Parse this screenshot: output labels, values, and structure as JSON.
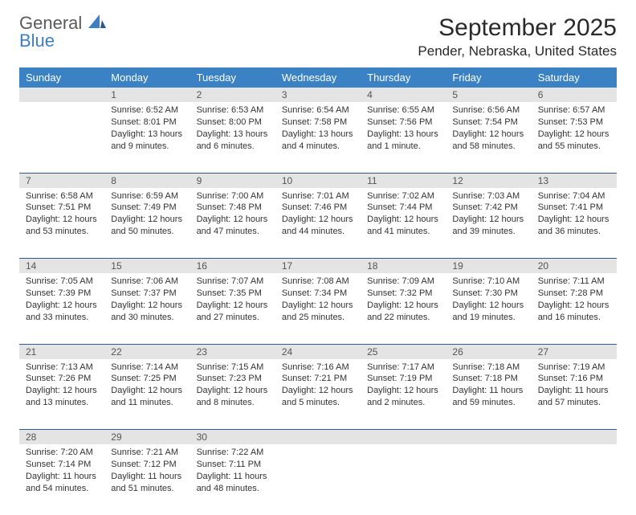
{
  "brand": {
    "line1": "General",
    "line2": "Blue"
  },
  "title": "September 2025",
  "location": "Pender, Nebraska, United States",
  "colors": {
    "header_bg": "#3b82c4",
    "header_text": "#ffffff",
    "daynum_bg": "#e4e4e4",
    "cell_border": "#2f5b8a",
    "body_text": "#333333",
    "brand_gray": "#5a5a5a",
    "brand_blue": "#3b7fc4"
  },
  "dayNames": [
    "Sunday",
    "Monday",
    "Tuesday",
    "Wednesday",
    "Thursday",
    "Friday",
    "Saturday"
  ],
  "weeks": [
    [
      null,
      {
        "n": "1",
        "sr": "6:52 AM",
        "ss": "8:01 PM",
        "dl": "13 hours and 9 minutes."
      },
      {
        "n": "2",
        "sr": "6:53 AM",
        "ss": "8:00 PM",
        "dl": "13 hours and 6 minutes."
      },
      {
        "n": "3",
        "sr": "6:54 AM",
        "ss": "7:58 PM",
        "dl": "13 hours and 4 minutes."
      },
      {
        "n": "4",
        "sr": "6:55 AM",
        "ss": "7:56 PM",
        "dl": "13 hours and 1 minute."
      },
      {
        "n": "5",
        "sr": "6:56 AM",
        "ss": "7:54 PM",
        "dl": "12 hours and 58 minutes."
      },
      {
        "n": "6",
        "sr": "6:57 AM",
        "ss": "7:53 PM",
        "dl": "12 hours and 55 minutes."
      }
    ],
    [
      {
        "n": "7",
        "sr": "6:58 AM",
        "ss": "7:51 PM",
        "dl": "12 hours and 53 minutes."
      },
      {
        "n": "8",
        "sr": "6:59 AM",
        "ss": "7:49 PM",
        "dl": "12 hours and 50 minutes."
      },
      {
        "n": "9",
        "sr": "7:00 AM",
        "ss": "7:48 PM",
        "dl": "12 hours and 47 minutes."
      },
      {
        "n": "10",
        "sr": "7:01 AM",
        "ss": "7:46 PM",
        "dl": "12 hours and 44 minutes."
      },
      {
        "n": "11",
        "sr": "7:02 AM",
        "ss": "7:44 PM",
        "dl": "12 hours and 41 minutes."
      },
      {
        "n": "12",
        "sr": "7:03 AM",
        "ss": "7:42 PM",
        "dl": "12 hours and 39 minutes."
      },
      {
        "n": "13",
        "sr": "7:04 AM",
        "ss": "7:41 PM",
        "dl": "12 hours and 36 minutes."
      }
    ],
    [
      {
        "n": "14",
        "sr": "7:05 AM",
        "ss": "7:39 PM",
        "dl": "12 hours and 33 minutes."
      },
      {
        "n": "15",
        "sr": "7:06 AM",
        "ss": "7:37 PM",
        "dl": "12 hours and 30 minutes."
      },
      {
        "n": "16",
        "sr": "7:07 AM",
        "ss": "7:35 PM",
        "dl": "12 hours and 27 minutes."
      },
      {
        "n": "17",
        "sr": "7:08 AM",
        "ss": "7:34 PM",
        "dl": "12 hours and 25 minutes."
      },
      {
        "n": "18",
        "sr": "7:09 AM",
        "ss": "7:32 PM",
        "dl": "12 hours and 22 minutes."
      },
      {
        "n": "19",
        "sr": "7:10 AM",
        "ss": "7:30 PM",
        "dl": "12 hours and 19 minutes."
      },
      {
        "n": "20",
        "sr": "7:11 AM",
        "ss": "7:28 PM",
        "dl": "12 hours and 16 minutes."
      }
    ],
    [
      {
        "n": "21",
        "sr": "7:13 AM",
        "ss": "7:26 PM",
        "dl": "12 hours and 13 minutes."
      },
      {
        "n": "22",
        "sr": "7:14 AM",
        "ss": "7:25 PM",
        "dl": "12 hours and 11 minutes."
      },
      {
        "n": "23",
        "sr": "7:15 AM",
        "ss": "7:23 PM",
        "dl": "12 hours and 8 minutes."
      },
      {
        "n": "24",
        "sr": "7:16 AM",
        "ss": "7:21 PM",
        "dl": "12 hours and 5 minutes."
      },
      {
        "n": "25",
        "sr": "7:17 AM",
        "ss": "7:19 PM",
        "dl": "12 hours and 2 minutes."
      },
      {
        "n": "26",
        "sr": "7:18 AM",
        "ss": "7:18 PM",
        "dl": "11 hours and 59 minutes."
      },
      {
        "n": "27",
        "sr": "7:19 AM",
        "ss": "7:16 PM",
        "dl": "11 hours and 57 minutes."
      }
    ],
    [
      {
        "n": "28",
        "sr": "7:20 AM",
        "ss": "7:14 PM",
        "dl": "11 hours and 54 minutes."
      },
      {
        "n": "29",
        "sr": "7:21 AM",
        "ss": "7:12 PM",
        "dl": "11 hours and 51 minutes."
      },
      {
        "n": "30",
        "sr": "7:22 AM",
        "ss": "7:11 PM",
        "dl": "11 hours and 48 minutes."
      },
      null,
      null,
      null,
      null
    ]
  ],
  "labels": {
    "sunrise": "Sunrise:",
    "sunset": "Sunset:",
    "daylight": "Daylight:"
  }
}
